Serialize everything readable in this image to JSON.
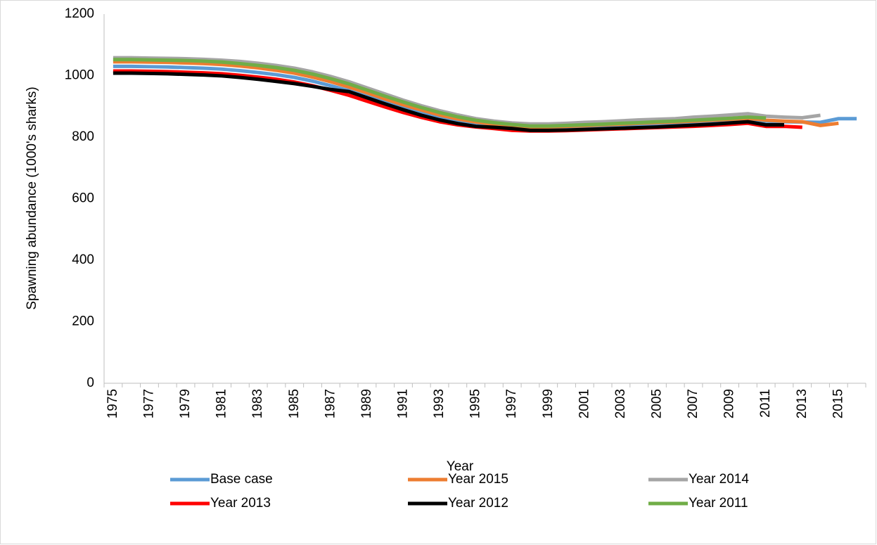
{
  "chart_data": {
    "type": "line",
    "xlabel": "Year",
    "ylabel": "Spawning abundance (1000's sharks)",
    "categories": [
      "1975",
      null,
      "1977",
      null,
      "1979",
      null,
      "1981",
      null,
      "1983",
      null,
      "1985",
      null,
      "1987",
      null,
      "1989",
      null,
      "1991",
      null,
      "1993",
      null,
      "1995",
      null,
      "1997",
      null,
      "1999",
      null,
      "2001",
      null,
      "2003",
      null,
      "2005",
      null,
      "2007",
      null,
      "2009",
      null,
      "2011",
      null,
      "2013",
      null,
      "2015",
      null
    ],
    "series": [
      {
        "name": "Base case",
        "color": "#5b9bd5",
        "values": [
          1030,
          1030,
          1029,
          1028,
          1026,
          1024,
          1021,
          1016,
          1010,
          1003,
          994,
          982,
          967,
          951,
          932,
          913,
          895,
          878,
          863,
          851,
          842,
          836,
          831,
          828,
          828,
          830,
          832,
          835,
          837,
          840,
          842,
          845,
          848,
          851,
          854,
          858,
          852,
          850,
          849,
          848,
          860,
          860
        ]
      },
      {
        "name": "Year 2015",
        "color": "#ed7d31",
        "values": [
          1045,
          1045,
          1044,
          1043,
          1041,
          1039,
          1036,
          1031,
          1025,
          1017,
          1008,
          995,
          980,
          963,
          944,
          924,
          905,
          888,
          872,
          859,
          849,
          842,
          836,
          833,
          833,
          835,
          837,
          840,
          842,
          845,
          847,
          849,
          852,
          855,
          858,
          861,
          855,
          852,
          850,
          838,
          845,
          null
        ]
      },
      {
        "name": "Year 2014",
        "color": "#a5a5a5",
        "values": [
          1058,
          1058,
          1057,
          1056,
          1055,
          1053,
          1050,
          1046,
          1040,
          1033,
          1024,
          1012,
          997,
          980,
          960,
          940,
          920,
          902,
          886,
          872,
          860,
          852,
          846,
          843,
          843,
          845,
          848,
          850,
          853,
          856,
          858,
          860,
          865,
          868,
          872,
          876,
          868,
          865,
          863,
          871,
          null,
          null
        ]
      },
      {
        "name": "Year 2013",
        "color": "#ff0000",
        "values": [
          1015,
          1015,
          1014,
          1013,
          1011,
          1009,
          1006,
          1001,
          995,
          988,
          979,
          967,
          952,
          936,
          917,
          898,
          880,
          864,
          850,
          840,
          833,
          828,
          822,
          820,
          820,
          821,
          823,
          825,
          827,
          829,
          831,
          833,
          835,
          838,
          841,
          845,
          835,
          835,
          832,
          null,
          null,
          null
        ]
      },
      {
        "name": "Year 2012",
        "color": "#000000",
        "values": [
          1008,
          1008,
          1007,
          1006,
          1004,
          1002,
          999,
          994,
          988,
          981,
          974,
          965,
          955,
          948,
          928,
          908,
          889,
          871,
          856,
          844,
          835,
          832,
          828,
          822,
          822,
          823,
          825,
          827,
          829,
          831,
          833,
          836,
          839,
          842,
          846,
          850,
          840,
          840,
          null,
          null,
          null,
          null
        ]
      },
      {
        "name": "Year 2011",
        "color": "#70ad47",
        "values": [
          1052,
          1052,
          1051,
          1050,
          1049,
          1047,
          1044,
          1039,
          1033,
          1026,
          1017,
          1005,
          990,
          973,
          953,
          933,
          914,
          896,
          880,
          866,
          855,
          847,
          841,
          836,
          836,
          838,
          840,
          842,
          845,
          847,
          850,
          852,
          855,
          858,
          861,
          865,
          862,
          null,
          null,
          null,
          null,
          null
        ]
      }
    ],
    "ylim": [
      0,
      1200
    ],
    "yticks": [
      0,
      200,
      400,
      600,
      800,
      1000,
      1200
    ],
    "grid": false,
    "legend": "bottom"
  }
}
